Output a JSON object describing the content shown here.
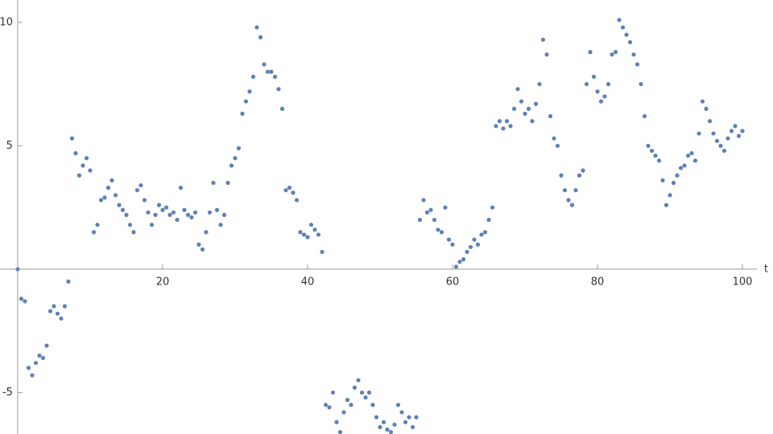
{
  "chart_data": {
    "type": "scatter",
    "xlabel": "t",
    "color": "#5e81b5",
    "xlim": [
      -2.44,
      104.22
    ],
    "ylim": [
      -6.68,
      10.91
    ],
    "xticks": [
      20,
      40,
      60,
      80,
      100
    ],
    "yticks": [
      -5,
      5,
      10
    ],
    "x": [
      0,
      0.5,
      1,
      1.5,
      2,
      2.5,
      3,
      3.5,
      4,
      4.5,
      5,
      5.5,
      6,
      6.5,
      7,
      7.5,
      8,
      8.5,
      9,
      9.5,
      10,
      10.5,
      11,
      11.5,
      12,
      12.5,
      13,
      13.5,
      14,
      14.5,
      15,
      15.5,
      16,
      16.5,
      17,
      17.5,
      18,
      18.5,
      19,
      19.5,
      20,
      20.5,
      21,
      21.5,
      22,
      22.5,
      23,
      23.5,
      24,
      24.5,
      25,
      25.5,
      26,
      26.5,
      27,
      27.5,
      28,
      28.5,
      29,
      29.5,
      30,
      30.5,
      31,
      31.5,
      32,
      32.5,
      33,
      33.5,
      34,
      34.5,
      35,
      35.5,
      36,
      36.5,
      37,
      37.5,
      38,
      38.5,
      39,
      39.5,
      40,
      40.5,
      41,
      41.5,
      42,
      42.5,
      43,
      43.5,
      44,
      44.5,
      45,
      45.5,
      46,
      46.5,
      47,
      47.5,
      48,
      48.5,
      49,
      49.5,
      50,
      50.5,
      51,
      51.5,
      52,
      52.5,
      53,
      53.5,
      54,
      54.5,
      55,
      55.5,
      56,
      56.5,
      57,
      57.5,
      58,
      58.5,
      59,
      59.5,
      60,
      60.5,
      61,
      61.5,
      62,
      62.5,
      63,
      63.5,
      64,
      64.5,
      65,
      65.5,
      66,
      66.5,
      67,
      67.5,
      68,
      68.5,
      69,
      69.5,
      70,
      70.5,
      71,
      71.5,
      72,
      72.5,
      73,
      73.5,
      74,
      74.5,
      75,
      75.5,
      76,
      76.5,
      77,
      77.5,
      78,
      78.5,
      79,
      79.5,
      80,
      80.5,
      81,
      81.5,
      82,
      82.5,
      83,
      83.5,
      84,
      84.5,
      85,
      85.5,
      86,
      86.5,
      87,
      87.5,
      88,
      88.5,
      89,
      89.5,
      90,
      90.5,
      91,
      91.5,
      92,
      92.5,
      93,
      93.5,
      94,
      94.5,
      95,
      95.5,
      96,
      96.5,
      97,
      97.5,
      98,
      98.5,
      99,
      99.5,
      100
    ],
    "values": [
      0,
      -1.2,
      -1.3,
      -4.0,
      -4.3,
      -3.8,
      -3.5,
      -3.6,
      -3.1,
      -1.7,
      -1.5,
      -1.8,
      -2.0,
      -1.5,
      -0.5,
      5.3,
      4.7,
      3.8,
      4.2,
      4.5,
      4.0,
      1.5,
      1.8,
      2.8,
      2.9,
      3.3,
      3.6,
      3.0,
      2.6,
      2.4,
      2.2,
      1.8,
      1.5,
      3.2,
      3.4,
      2.8,
      2.3,
      1.8,
      2.2,
      2.6,
      2.4,
      2.5,
      2.2,
      2.3,
      2.0,
      3.3,
      2.4,
      2.2,
      2.1,
      2.3,
      1.0,
      0.8,
      1.5,
      2.3,
      3.5,
      2.4,
      1.8,
      2.2,
      3.5,
      4.2,
      4.5,
      4.9,
      6.3,
      6.8,
      7.2,
      7.8,
      9.8,
      9.4,
      8.3,
      8.0,
      8.0,
      7.8,
      7.3,
      6.5,
      3.2,
      3.3,
      3.1,
      2.8,
      1.5,
      1.4,
      1.3,
      1.8,
      1.6,
      1.4,
      0.7,
      -5.5,
      -5.6,
      -5.0,
      -6.2,
      -6.6,
      -5.8,
      -5.3,
      -5.5,
      -4.8,
      -4.5,
      -5.0,
      -5.2,
      -5.0,
      -5.5,
      -6.0,
      -6.4,
      -6.2,
      -6.5,
      -6.6,
      -6.3,
      -5.5,
      -5.8,
      -6.2,
      -6.0,
      -6.4,
      -6.0,
      2.0,
      2.8,
      2.3,
      2.4,
      2.0,
      1.6,
      1.5,
      2.5,
      1.2,
      1.0,
      0.1,
      0.3,
      0.4,
      0.7,
      0.9,
      1.2,
      1.0,
      1.4,
      1.5,
      2.0,
      2.5,
      5.8,
      6.0,
      5.7,
      6.0,
      5.8,
      6.5,
      7.3,
      6.8,
      6.3,
      6.5,
      6.0,
      6.7,
      7.5,
      9.3,
      8.7,
      6.2,
      5.3,
      5.0,
      3.8,
      3.2,
      2.8,
      2.6,
      3.2,
      3.8,
      4.0,
      7.5,
      8.8,
      7.8,
      7.2,
      6.8,
      7.0,
      7.5,
      8.7,
      8.8,
      10.1,
      9.8,
      9.5,
      9.2,
      8.7,
      8.3,
      7.5,
      6.2,
      5.0,
      4.8,
      4.6,
      4.4,
      3.6,
      2.6,
      3.0,
      3.5,
      3.8,
      4.1,
      4.2,
      4.6,
      4.7,
      4.4,
      5.5,
      6.8,
      6.5,
      6.0,
      5.5,
      5.2,
      5.0,
      4.8,
      5.3,
      5.6,
      5.8,
      5.4,
      5.6
    ]
  }
}
